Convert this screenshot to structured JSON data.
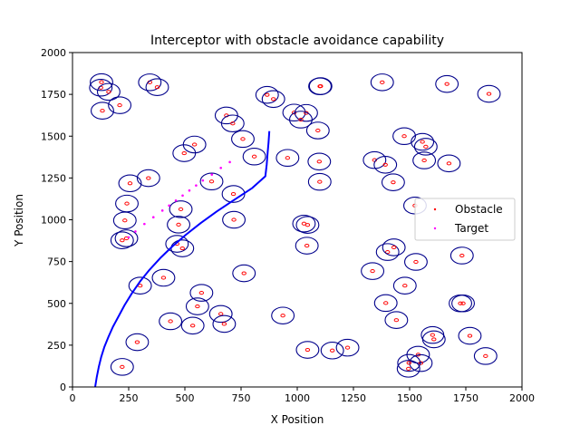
{
  "chart_data": {
    "type": "scatter",
    "title": "Interceptor with obstacle avoidance capability",
    "xlabel": "X Position",
    "ylabel": "Y Position",
    "xlim": [
      0,
      2000
    ],
    "ylim": [
      0,
      2000
    ],
    "xticks": [
      "0",
      "250",
      "500",
      "750",
      "1000",
      "1250",
      "1500",
      "1750",
      "2000"
    ],
    "yticks": [
      "0",
      "250",
      "500",
      "750",
      "1000",
      "1250",
      "1500",
      "1750",
      "2000"
    ],
    "grid": false,
    "legend": {
      "placement": "right",
      "entries": [
        {
          "label": "Obstacle",
          "color": "#ff0000"
        },
        {
          "label": "Target",
          "color": "#ff00ff"
        }
      ]
    },
    "obstacle_radius": 50,
    "colors": {
      "obstacle_center": "#ff0000",
      "obstacle_circle": "#00008b",
      "target": "#ff00ff",
      "interceptor": "#0000ff"
    },
    "series": [
      {
        "name": "Obstacle",
        "kind": "obstacle",
        "points": [
          [
            129,
            1823
          ],
          [
            126,
            1790
          ],
          [
            161,
            1765
          ],
          [
            133,
            1652
          ],
          [
            210,
            1685
          ],
          [
            344,
            1822
          ],
          [
            377,
            1793
          ],
          [
            256,
            1218
          ],
          [
            338,
            1249
          ],
          [
            242,
            1097
          ],
          [
            233,
            996
          ],
          [
            240,
            889
          ],
          [
            221,
            877
          ],
          [
            301,
            606
          ],
          [
            405,
            653
          ],
          [
            288,
            268
          ],
          [
            221,
            120
          ],
          [
            436,
            393
          ],
          [
            482,
            1063
          ],
          [
            465,
            856
          ],
          [
            489,
            829
          ],
          [
            472,
            971
          ],
          [
            497,
            1398
          ],
          [
            543,
            1450
          ],
          [
            619,
            1229
          ],
          [
            685,
            1624
          ],
          [
            713,
            1576
          ],
          [
            758,
            1483
          ],
          [
            716,
            1154
          ],
          [
            718,
            1000
          ],
          [
            763,
            680
          ],
          [
            574,
            563
          ],
          [
            556,
            482
          ],
          [
            535,
            367
          ],
          [
            660,
            437
          ],
          [
            675,
            377
          ],
          [
            866,
            1747
          ],
          [
            894,
            1722
          ],
          [
            809,
            1378
          ],
          [
            957,
            1370
          ],
          [
            986,
            1641
          ],
          [
            1040,
            1639
          ],
          [
            1016,
            1599
          ],
          [
            1092,
            1534
          ],
          [
            1101,
            1798
          ],
          [
            1104,
            1799
          ],
          [
            1098,
            1348
          ],
          [
            1100,
            1227
          ],
          [
            1030,
            977
          ],
          [
            1046,
            969
          ],
          [
            1043,
            845
          ],
          [
            936,
            427
          ],
          [
            1046,
            222
          ],
          [
            1156,
            218
          ],
          [
            1224,
            235
          ],
          [
            1378,
            1822
          ],
          [
            1344,
            1357
          ],
          [
            1392,
            1329
          ],
          [
            1427,
            1224
          ],
          [
            1335,
            693
          ],
          [
            1402,
            807
          ],
          [
            1430,
            835
          ],
          [
            1394,
            502
          ],
          [
            1441,
            400
          ],
          [
            1479,
            606
          ],
          [
            1528,
            748
          ],
          [
            1476,
            1500
          ],
          [
            1557,
            1466
          ],
          [
            1572,
            1437
          ],
          [
            1565,
            1355
          ],
          [
            1675,
            1337
          ],
          [
            1666,
            1812
          ],
          [
            1853,
            1753
          ],
          [
            1524,
            1085
          ],
          [
            1733,
            786
          ],
          [
            1726,
            500
          ],
          [
            1738,
            500
          ],
          [
            1768,
            306
          ],
          [
            1602,
            311
          ],
          [
            1608,
            285
          ],
          [
            1538,
            193
          ],
          [
            1550,
            143
          ],
          [
            1497,
            144
          ],
          [
            1495,
            109
          ],
          [
            1838,
            185
          ]
        ]
      },
      {
        "name": "Target",
        "kind": "target",
        "points": [
          [
            250,
            895
          ],
          [
            280,
            930
          ],
          [
            320,
            975
          ],
          [
            360,
            1015
          ],
          [
            400,
            1055
          ],
          [
            430,
            1085
          ],
          [
            460,
            1115
          ],
          [
            490,
            1145
          ],
          [
            520,
            1175
          ],
          [
            550,
            1205
          ],
          [
            580,
            1235
          ],
          [
            620,
            1270
          ],
          [
            660,
            1310
          ],
          [
            700,
            1345
          ]
        ]
      },
      {
        "kind": "interceptor",
        "points": [
          [
            101,
            0
          ],
          [
            108,
            60
          ],
          [
            117,
            120
          ],
          [
            128,
            180
          ],
          [
            142,
            240
          ],
          [
            160,
            300
          ],
          [
            180,
            360
          ],
          [
            204,
            420
          ],
          [
            232,
            490
          ],
          [
            264,
            560
          ],
          [
            300,
            630
          ],
          [
            342,
            700
          ],
          [
            390,
            770
          ],
          [
            444,
            840
          ],
          [
            504,
            910
          ],
          [
            570,
            980
          ],
          [
            642,
            1050
          ],
          [
            720,
            1120
          ],
          [
            800,
            1190
          ],
          [
            858,
            1260
          ],
          [
            864,
            1330
          ],
          [
            868,
            1400
          ],
          [
            872,
            1460
          ],
          [
            876,
            1530
          ]
        ]
      }
    ]
  }
}
